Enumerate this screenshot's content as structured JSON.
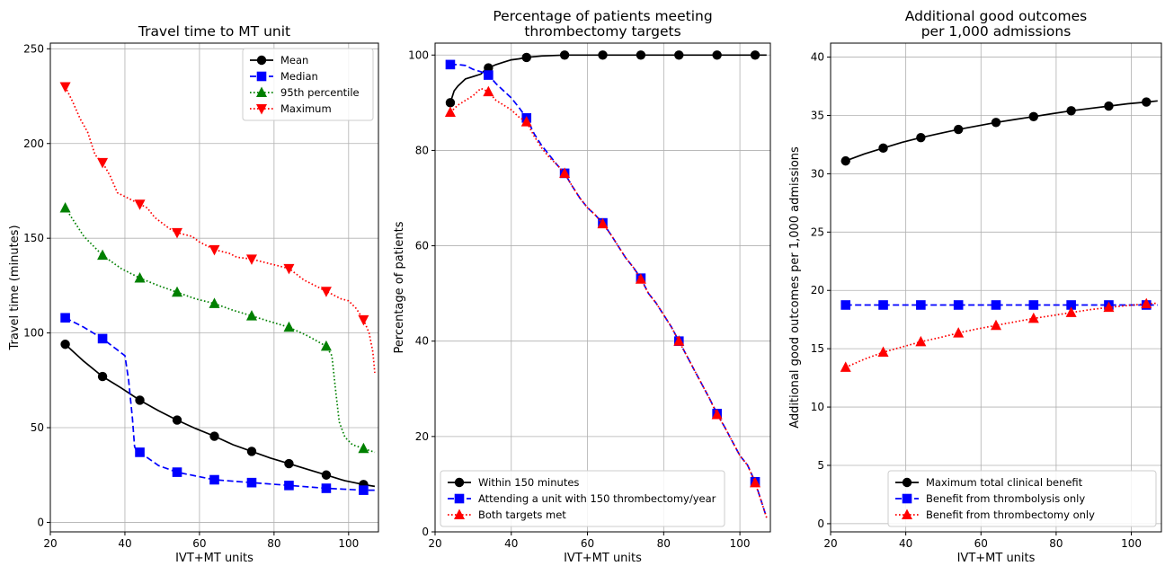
{
  "chart_data": [
    {
      "type": "line",
      "title": [
        "Travel time to MT unit"
      ],
      "xlabel": "IVT+MT units",
      "ylabel": "Travel time (minutes)",
      "xlim": [
        20,
        108
      ],
      "ylim": [
        -5,
        253
      ],
      "xticks": [
        20,
        40,
        60,
        80,
        100
      ],
      "yticks": [
        0,
        50,
        100,
        150,
        200,
        250
      ],
      "grid": true,
      "legend_position": "top-right",
      "series": [
        {
          "name": "Mean",
          "color": "#000000",
          "marker": "circle",
          "dash": "solid",
          "x": [
            24,
            29,
            34,
            39,
            44,
            49,
            54,
            59,
            64,
            69,
            74,
            79,
            84,
            89,
            94,
            99,
            104,
            107
          ],
          "y": [
            94,
            85,
            77,
            71,
            64.5,
            59,
            54,
            49.5,
            45.5,
            41,
            37.5,
            34,
            31,
            28,
            25,
            22,
            20,
            19
          ],
          "marker_x": [
            24,
            34,
            44,
            54,
            64,
            74,
            84,
            94,
            104
          ],
          "marker_y": [
            94,
            77,
            64.5,
            54,
            45.5,
            37.5,
            31,
            25,
            20
          ]
        },
        {
          "name": "Median",
          "color": "#0000ff",
          "marker": "square",
          "dash": "dashed",
          "x": [
            24,
            29,
            34,
            38,
            40,
            41,
            42,
            42.6,
            43.2,
            44,
            49,
            54,
            64,
            74,
            84,
            94,
            104,
            107
          ],
          "y": [
            108,
            103,
            97,
            91,
            88,
            75,
            55,
            40,
            37.5,
            37,
            30,
            26.5,
            22.5,
            21,
            19.5,
            18,
            17,
            17
          ],
          "marker_x": [
            24,
            34,
            44,
            54,
            64,
            74,
            84,
            94,
            104
          ],
          "marker_y": [
            108,
            97,
            37,
            26.5,
            22.5,
            21,
            19.5,
            18,
            17
          ]
        },
        {
          "name": "95th percentile",
          "color": "#008000",
          "marker": "triangle-up",
          "dash": "dotted",
          "x": [
            24,
            29,
            34,
            39,
            44,
            49,
            54,
            59,
            64,
            69,
            74,
            79,
            84,
            89,
            94,
            95.5,
            96.5,
            97.5,
            99,
            101,
            104,
            107
          ],
          "y": [
            166,
            151,
            141,
            134,
            129,
            125,
            121.5,
            118,
            115.5,
            112,
            109,
            106,
            103,
            98.5,
            93,
            88,
            70,
            53,
            45,
            41,
            39,
            37
          ],
          "marker_x": [
            24,
            34,
            44,
            54,
            64,
            74,
            84,
            94,
            104
          ],
          "marker_y": [
            166,
            141,
            129,
            121.5,
            115.5,
            109,
            103,
            93,
            39
          ]
        },
        {
          "name": "Maximum",
          "color": "#ff0000",
          "marker": "triangle-down",
          "dash": "dotted",
          "x": [
            24,
            26,
            28,
            30,
            32,
            34,
            36,
            38,
            40,
            42,
            44,
            46,
            48,
            50,
            52,
            54,
            56,
            58,
            60,
            62,
            64,
            66,
            68,
            70,
            72,
            74,
            76,
            78,
            80,
            82,
            84,
            86,
            88,
            90,
            92,
            94,
            96,
            98,
            100,
            102,
            104,
            105.5,
            106.5,
            107
          ],
          "y": [
            230,
            222,
            213,
            206,
            194,
            190,
            183,
            174,
            172,
            170,
            168,
            166,
            161,
            158,
            155,
            153,
            152,
            151,
            148,
            146,
            144,
            143,
            142,
            140,
            139.5,
            139,
            138,
            137,
            136,
            135,
            134,
            131,
            128,
            126,
            124,
            122,
            120,
            118,
            117,
            113,
            107,
            100,
            90,
            79
          ],
          "marker_x": [
            24,
            34,
            44,
            54,
            64,
            74,
            84,
            94,
            104
          ],
          "marker_y": [
            230,
            190,
            168,
            153,
            144,
            139,
            134,
            122,
            107
          ]
        }
      ]
    },
    {
      "type": "line",
      "title": [
        "Percentage of patients meeting",
        "thrombectomy targets"
      ],
      "xlabel": "IVT+MT units",
      "ylabel": "Percentage of patients",
      "xlim": [
        20,
        108
      ],
      "ylim": [
        0,
        102.5
      ],
      "xticks": [
        20,
        40,
        60,
        80,
        100
      ],
      "yticks": [
        0,
        20,
        40,
        60,
        80,
        100
      ],
      "grid": true,
      "legend_position": "bottom-left",
      "series": [
        {
          "name": "Within 150 minutes",
          "color": "#000000",
          "marker": "circle",
          "dash": "solid",
          "x": [
            24,
            25,
            26,
            28,
            30,
            32,
            33,
            34,
            36,
            38,
            40,
            42,
            44,
            48,
            54,
            64,
            74,
            84,
            94,
            104,
            107
          ],
          "y": [
            90,
            92.5,
            93.5,
            95,
            95.5,
            96,
            96.8,
            97.3,
            98,
            98.5,
            99,
            99.2,
            99.5,
            99.8,
            100,
            100,
            100,
            100,
            100,
            100,
            100
          ],
          "marker_x": [
            24,
            34,
            44,
            54,
            64,
            74,
            84,
            94,
            104
          ],
          "marker_y": [
            90,
            97.3,
            99.5,
            100,
            100,
            100,
            100,
            100,
            100
          ]
        },
        {
          "name": "Attending a unit with 150 thrombectomy/year",
          "color": "#0000ff",
          "marker": "square",
          "dash": "dashed",
          "x": [
            24,
            26,
            28,
            30,
            32,
            34,
            36,
            38,
            40,
            42,
            44,
            46,
            48,
            50,
            52,
            54,
            56,
            58,
            60,
            62,
            64,
            66,
            68,
            70,
            72,
            74,
            76,
            78,
            80,
            82,
            84,
            86,
            88,
            90,
            92,
            94,
            96,
            98,
            100,
            102,
            104,
            106,
            107
          ],
          "y": [
            98,
            98,
            97.8,
            97,
            96.5,
            95.8,
            94,
            92.5,
            91,
            89,
            86.8,
            83.5,
            81,
            79,
            77,
            75.2,
            72.5,
            70,
            68,
            66.5,
            64.8,
            62.5,
            60,
            57.5,
            55.5,
            53.2,
            50,
            48,
            45.5,
            43,
            40,
            37,
            34,
            31,
            28,
            24.8,
            22,
            19,
            16,
            14,
            10.5,
            5.5,
            3
          ],
          "marker_x": [
            24,
            34,
            44,
            54,
            64,
            74,
            84,
            94,
            104
          ],
          "marker_y": [
            98,
            95.8,
            86.8,
            75.2,
            64.8,
            53.2,
            40,
            24.8,
            10.5
          ]
        },
        {
          "name": "Both targets met",
          "color": "#ff0000",
          "marker": "triangle-up",
          "dash": "dotted",
          "x": [
            24,
            26,
            28,
            30,
            32,
            34,
            36,
            38,
            40,
            42,
            44,
            46,
            48,
            50,
            52,
            54,
            56,
            58,
            60,
            62,
            64,
            66,
            68,
            70,
            72,
            74,
            76,
            78,
            80,
            82,
            84,
            86,
            88,
            90,
            92,
            94,
            96,
            98,
            100,
            102,
            104,
            106,
            107
          ],
          "y": [
            88,
            89.5,
            90.5,
            91.5,
            93,
            92.3,
            90.5,
            89.5,
            88.5,
            87,
            86,
            83,
            80.5,
            78.5,
            77,
            75.2,
            72.5,
            70,
            68,
            66.5,
            64.6,
            62.5,
            60,
            57.5,
            55.5,
            53,
            50,
            48,
            45.5,
            43,
            40,
            37,
            34,
            31,
            28,
            24.6,
            22,
            19,
            16,
            14,
            10.3,
            5.5,
            3
          ],
          "marker_x": [
            24,
            34,
            44,
            54,
            64,
            74,
            84,
            94,
            104
          ],
          "marker_y": [
            88,
            92.3,
            86,
            75.2,
            64.6,
            53,
            40,
            24.6,
            10.3
          ]
        }
      ]
    },
    {
      "type": "line",
      "title": [
        "Additional good outcomes",
        "per 1,000 admissions"
      ],
      "xlabel": "IVT+MT units",
      "ylabel": "Additional good outcomes per 1,000 admissions",
      "xlim": [
        20,
        108
      ],
      "ylim": [
        -0.7,
        41.2
      ],
      "xticks": [
        20,
        40,
        60,
        80,
        100
      ],
      "yticks": [
        0,
        5,
        10,
        15,
        20,
        25,
        30,
        35,
        40
      ],
      "grid": true,
      "legend_position": "bottom-right",
      "series": [
        {
          "name": "Maximum total clinical benefit",
          "color": "#000000",
          "marker": "circle",
          "dash": "solid",
          "x": [
            24,
            29,
            34,
            39,
            44,
            49,
            54,
            59,
            64,
            69,
            74,
            79,
            84,
            89,
            94,
            99,
            104,
            107
          ],
          "y": [
            31.1,
            31.7,
            32.2,
            32.7,
            33.1,
            33.45,
            33.8,
            34.1,
            34.4,
            34.65,
            34.9,
            35.15,
            35.4,
            35.6,
            35.8,
            36.0,
            36.15,
            36.25
          ],
          "marker_x": [
            24,
            34,
            44,
            54,
            64,
            74,
            84,
            94,
            104
          ],
          "marker_y": [
            31.1,
            32.2,
            33.1,
            33.8,
            34.4,
            34.9,
            35.4,
            35.8,
            36.15
          ]
        },
        {
          "name": "Benefit from thrombolysis only",
          "color": "#0000ff",
          "marker": "square",
          "dash": "dashed",
          "x": [
            24,
            107
          ],
          "y": [
            18.75,
            18.75
          ],
          "marker_x": [
            24,
            34,
            44,
            54,
            64,
            74,
            84,
            94,
            104
          ],
          "marker_y": [
            18.75,
            18.75,
            18.75,
            18.75,
            18.75,
            18.75,
            18.75,
            18.75,
            18.75
          ]
        },
        {
          "name": "Benefit from thrombectomy only",
          "color": "#ff0000",
          "marker": "triangle-up",
          "dash": "dotted",
          "x": [
            24,
            29,
            34,
            39,
            44,
            49,
            54,
            59,
            64,
            69,
            74,
            79,
            84,
            89,
            94,
            99,
            104,
            107
          ],
          "y": [
            13.4,
            14.1,
            14.7,
            15.15,
            15.6,
            15.95,
            16.35,
            16.7,
            17.0,
            17.3,
            17.6,
            17.85,
            18.1,
            18.35,
            18.55,
            18.7,
            18.85,
            18.9
          ],
          "marker_x": [
            24,
            34,
            44,
            54,
            64,
            74,
            84,
            94,
            104
          ],
          "marker_y": [
            13.4,
            14.7,
            15.6,
            16.35,
            17.0,
            17.6,
            18.1,
            18.55,
            18.85
          ]
        }
      ]
    }
  ]
}
